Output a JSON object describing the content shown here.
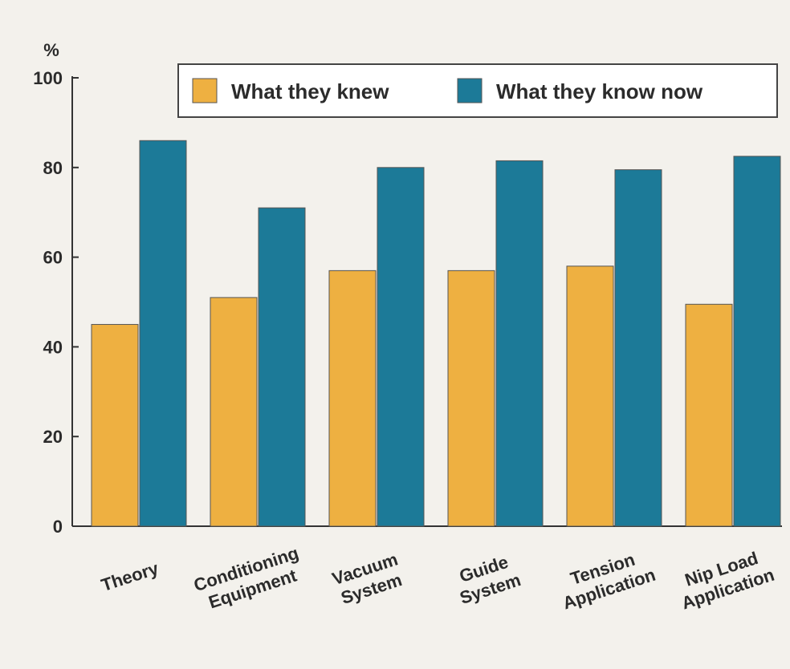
{
  "chart_data": {
    "type": "bar",
    "unit_label": "%",
    "categories": [
      [
        "Theory"
      ],
      [
        "Conditioning",
        "Equipment"
      ],
      [
        "Vacuum",
        "System"
      ],
      [
        "Guide",
        "System"
      ],
      [
        "Tension",
        "Application"
      ],
      [
        "Nip Load",
        "Application"
      ]
    ],
    "series": [
      {
        "name": "What they knew",
        "color": "#eeb041",
        "values": [
          45,
          51,
          57,
          57,
          58,
          49.5
        ]
      },
      {
        "name": "What they know now",
        "color": "#1c7a98",
        "values": [
          86,
          71,
          80,
          81.5,
          79.5,
          82.5
        ]
      }
    ],
    "ylim": [
      0,
      100
    ],
    "yticks": [
      0,
      20,
      40,
      60,
      80,
      100
    ],
    "grid": false,
    "legend_position": "top-right"
  }
}
